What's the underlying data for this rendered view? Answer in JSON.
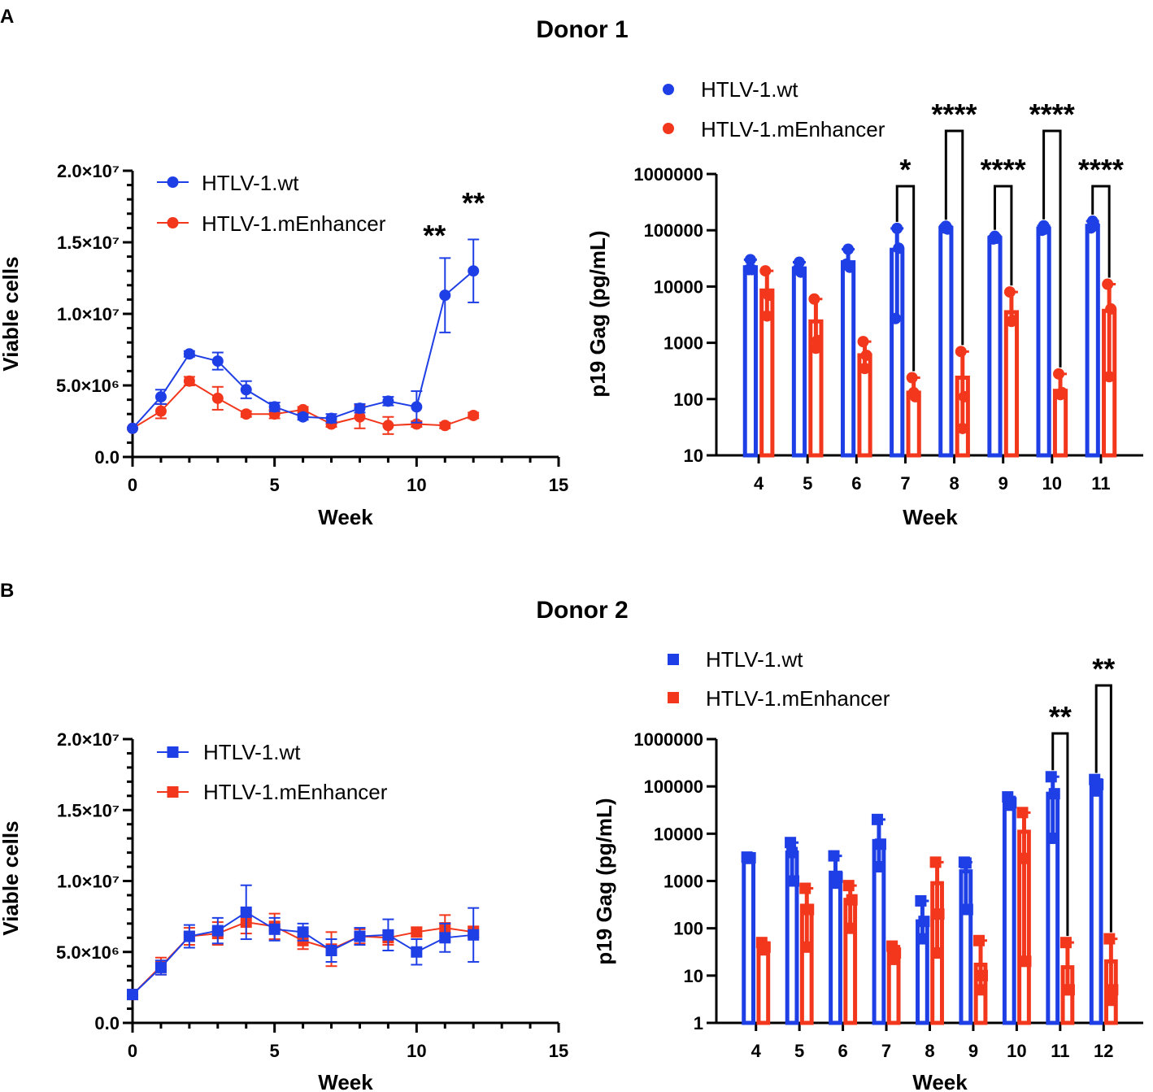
{
  "colors": {
    "wt": "#1f3fe6",
    "mEnh": "#f2371c"
  },
  "panel_labels": [
    "A",
    "B"
  ],
  "donor_titles": [
    "Donor 1",
    "Donor 2"
  ],
  "chart_data": [
    {
      "id": "A_viable",
      "type": "line",
      "xlabel": "Week",
      "ylabel": "Viable cells",
      "xlim": [
        0,
        15
      ],
      "xticks": [
        "0",
        "5",
        "10",
        "15"
      ],
      "ylim": [
        0,
        20000000
      ],
      "yticks": [
        "0.0",
        "5.0×10⁶",
        "1.0×10⁷",
        "1.5×10⁷",
        "2.0×10⁷"
      ],
      "marker": "circle",
      "series": [
        {
          "name": "HTLV-1.wt",
          "color": "#1f3fe6",
          "x": [
            0,
            1,
            2,
            3,
            4,
            5,
            6,
            7,
            8,
            9,
            10,
            11,
            12
          ],
          "y": [
            2000000,
            4200000,
            7200000,
            6700000,
            4700000,
            3500000,
            2800000,
            2700000,
            3400000,
            3900000,
            3500000,
            11300000,
            13000000
          ],
          "err": [
            0,
            500000,
            200000,
            600000,
            600000,
            300000,
            200000,
            300000,
            300000,
            300000,
            1100000,
            2600000,
            2200000
          ]
        },
        {
          "name": "HTLV-1.mEnhancer",
          "color": "#f2371c",
          "x": [
            0,
            1,
            2,
            3,
            4,
            5,
            6,
            7,
            8,
            9,
            10,
            11,
            12
          ],
          "y": [
            2000000,
            3200000,
            5300000,
            4100000,
            3000000,
            3000000,
            3300000,
            2300000,
            2800000,
            2200000,
            2300000,
            2200000,
            2900000
          ],
          "err": [
            0,
            500000,
            300000,
            800000,
            200000,
            300000,
            200000,
            200000,
            800000,
            600000,
            200000,
            200000,
            200000
          ]
        }
      ],
      "annotations": [
        {
          "x": 11,
          "text": "**"
        },
        {
          "x": 12,
          "text": "**"
        }
      ]
    },
    {
      "id": "A_p19",
      "type": "bar",
      "scale": "log",
      "xlabel": "Week",
      "ylabel": "p19 Gag (pg/mL)",
      "ylim": [
        10,
        1000000
      ],
      "yticks": [
        "10",
        "100",
        "1000",
        "10000",
        "100000",
        "1000000"
      ],
      "categories": [
        "4",
        "5",
        "6",
        "7",
        "8",
        "9",
        "10",
        "11"
      ],
      "marker": "circle",
      "series": [
        {
          "name": "HTLV-1.wt",
          "color": "#1f3fe6",
          "values": [
            22000,
            21000,
            27000,
            45000,
            110000,
            73000,
            107000,
            120000
          ],
          "points": [
            [
              20000,
              30000,
              20000
            ],
            [
              20000,
              27000,
              18000
            ],
            [
              25000,
              46000,
              22000
            ],
            [
              2700,
              108000,
              48000
            ],
            [
              110000,
              118000,
              105000
            ],
            [
              70000,
              78000,
              72000
            ],
            [
              100000,
              120000,
              105000
            ],
            [
              110000,
              145000,
              120000
            ]
          ]
        },
        {
          "name": "HTLV-1.mEnhancer",
          "color": "#f2371c",
          "values": [
            8500,
            2400,
            600,
            130,
            240,
            3500,
            140,
            3700
          ],
          "points": [
            [
              19000,
              3000,
              7000
            ],
            [
              6000,
              800,
              1100
            ],
            [
              1050,
              350,
              600
            ],
            [
              240,
              130,
              110
            ],
            [
              700,
              30,
              110
            ],
            [
              8000,
              2400,
              2500
            ],
            [
              280,
              120,
              130
            ],
            [
              11000,
              250,
              4000
            ]
          ]
        }
      ],
      "significance": [
        {
          "category": "7",
          "text": "*"
        },
        {
          "category": "8",
          "text": "****"
        },
        {
          "category": "9",
          "text": "****"
        },
        {
          "category": "10",
          "text": "****"
        },
        {
          "category": "11",
          "text": "****"
        }
      ]
    },
    {
      "id": "B_viable",
      "type": "line",
      "xlabel": "Week",
      "ylabel": "Viable cells",
      "xlim": [
        0,
        15
      ],
      "xticks": [
        "0",
        "5",
        "10",
        "15"
      ],
      "ylim": [
        0,
        20000000
      ],
      "yticks": [
        "0.0",
        "5.0×10⁶",
        "1.0×10⁷",
        "1.5×10⁷",
        "2.0×10⁷"
      ],
      "marker": "square",
      "series": [
        {
          "name": "HTLV-1.wt",
          "color": "#1f3fe6",
          "x": [
            0,
            1,
            2,
            3,
            4,
            5,
            6,
            7,
            8,
            9,
            10,
            11,
            12
          ],
          "y": [
            2000000,
            3900000,
            6100000,
            6500000,
            7800000,
            6600000,
            6400000,
            5100000,
            6100000,
            6200000,
            5000000,
            6000000,
            6200000
          ],
          "err": [
            0,
            500000,
            800000,
            900000,
            1900000,
            800000,
            600000,
            800000,
            600000,
            1100000,
            900000,
            1000000,
            1900000
          ]
        },
        {
          "name": "HTLV-1.mEnhancer",
          "color": "#f2371c",
          "y": [
            2000000,
            4000000,
            6100000,
            6300000,
            7100000,
            6800000,
            5800000,
            5200000,
            6100000,
            6000000,
            6400000,
            6700000,
            6400000
          ],
          "x": [
            0,
            1,
            2,
            3,
            4,
            5,
            6,
            7,
            8,
            9,
            10,
            11,
            12
          ],
          "err": [
            0,
            600000,
            600000,
            800000,
            800000,
            900000,
            600000,
            1200000,
            500000,
            500000,
            300000,
            900000,
            400000
          ]
        }
      ]
    },
    {
      "id": "B_p19",
      "type": "bar",
      "scale": "log",
      "xlabel": "Week",
      "ylabel": "p19 Gag (pg/mL)",
      "ylim": [
        1,
        1000000
      ],
      "yticks": [
        "1",
        "10",
        "100",
        "1000",
        "10000",
        "100000",
        "1000000"
      ],
      "categories": [
        "4",
        "5",
        "6",
        "7",
        "8",
        "9",
        "10",
        "11",
        "12"
      ],
      "marker": "square",
      "series": [
        {
          "name": "HTLV-1.wt",
          "color": "#1f3fe6",
          "values": [
            3200,
            4000,
            1500,
            7000,
            140,
            1600,
            45000,
            70000,
            100000
          ],
          "points": [
            [
              3200,
              3000,
              3100
            ],
            [
              6500,
              4000,
              1000
            ],
            [
              3400,
              900,
              1200
            ],
            [
              20000,
              2000,
              6000
            ],
            [
              380,
              60,
              140
            ],
            [
              2500,
              2400,
              250
            ],
            [
              60000,
              40000,
              45000
            ],
            [
              160000,
              8000,
              70000
            ],
            [
              140000,
              80000,
              110000
            ]
          ]
        },
        {
          "name": "HTLV-1.mEnhancer",
          "color": "#f2371c",
          "values": [
            40,
            300,
            400,
            30,
            900,
            17,
            11000,
            15,
            20
          ],
          "points": [
            [
              50,
              35,
              40
            ],
            [
              700,
              40,
              250
            ],
            [
              800,
              100,
              400
            ],
            [
              42,
              22,
              30
            ],
            [
              2500,
              30,
              200
            ],
            [
              55,
              5,
              10
            ],
            [
              28000,
              3000,
              20
            ],
            [
              50,
              5,
              5
            ],
            [
              60,
              3,
              5
            ]
          ]
        }
      ],
      "significance": [
        {
          "category": "11",
          "text": "**"
        },
        {
          "category": "12",
          "text": "**"
        }
      ]
    }
  ]
}
